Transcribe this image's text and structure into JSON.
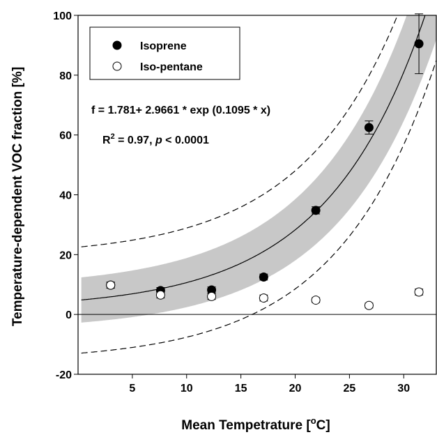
{
  "chart_data": {
    "type": "scatter",
    "xlabel": "Mean Tempetrature [",
    "xlabel_sup": "o",
    "xlabel_end": "C]",
    "ylabel": "Temperature-dependent VOC fraction [%]",
    "xlim": [
      0,
      33
    ],
    "ylim": [
      -20,
      100
    ],
    "xticks": [
      5,
      10,
      15,
      20,
      25,
      30
    ],
    "yticks": [
      -20,
      0,
      20,
      40,
      60,
      80,
      100
    ],
    "grid": false,
    "legend_position": "top-left",
    "series": [
      {
        "name": "Isoprene",
        "marker": "filled-circle",
        "color": "#000000",
        "x": [
          3.0,
          7.6,
          12.3,
          17.1,
          21.9,
          26.8,
          31.4
        ],
        "y": [
          9.8,
          8.0,
          8.2,
          12.5,
          34.8,
          62.5,
          90.5
        ],
        "yerr": [
          1.0,
          1.0,
          1.0,
          1.0,
          1.2,
          2.2,
          10.0
        ]
      },
      {
        "name": "Iso-pentane",
        "marker": "open-circle",
        "color": "#000000",
        "x": [
          3.0,
          7.6,
          12.3,
          17.1,
          21.9,
          26.8,
          31.4
        ],
        "y": [
          9.8,
          6.5,
          6.0,
          5.5,
          4.8,
          3.0,
          7.5
        ],
        "yerr": [
          1.0,
          1.0,
          1.0,
          1.0,
          0.8,
          0.8,
          1.0
        ]
      }
    ],
    "fit": {
      "a": 1.781,
      "b": 2.9661,
      "c": 0.1095,
      "confidence_band_color": "#c8c8c8"
    },
    "equation_text": "f = 1.781+ 2.9661 * exp (0.1095 * x)",
    "r2_text_a": "R",
    "r2_text_sup": "2",
    "r2_text_b": " = 0.97,  ",
    "r2_text_p": "p",
    "r2_text_c": " < 0.0001"
  }
}
